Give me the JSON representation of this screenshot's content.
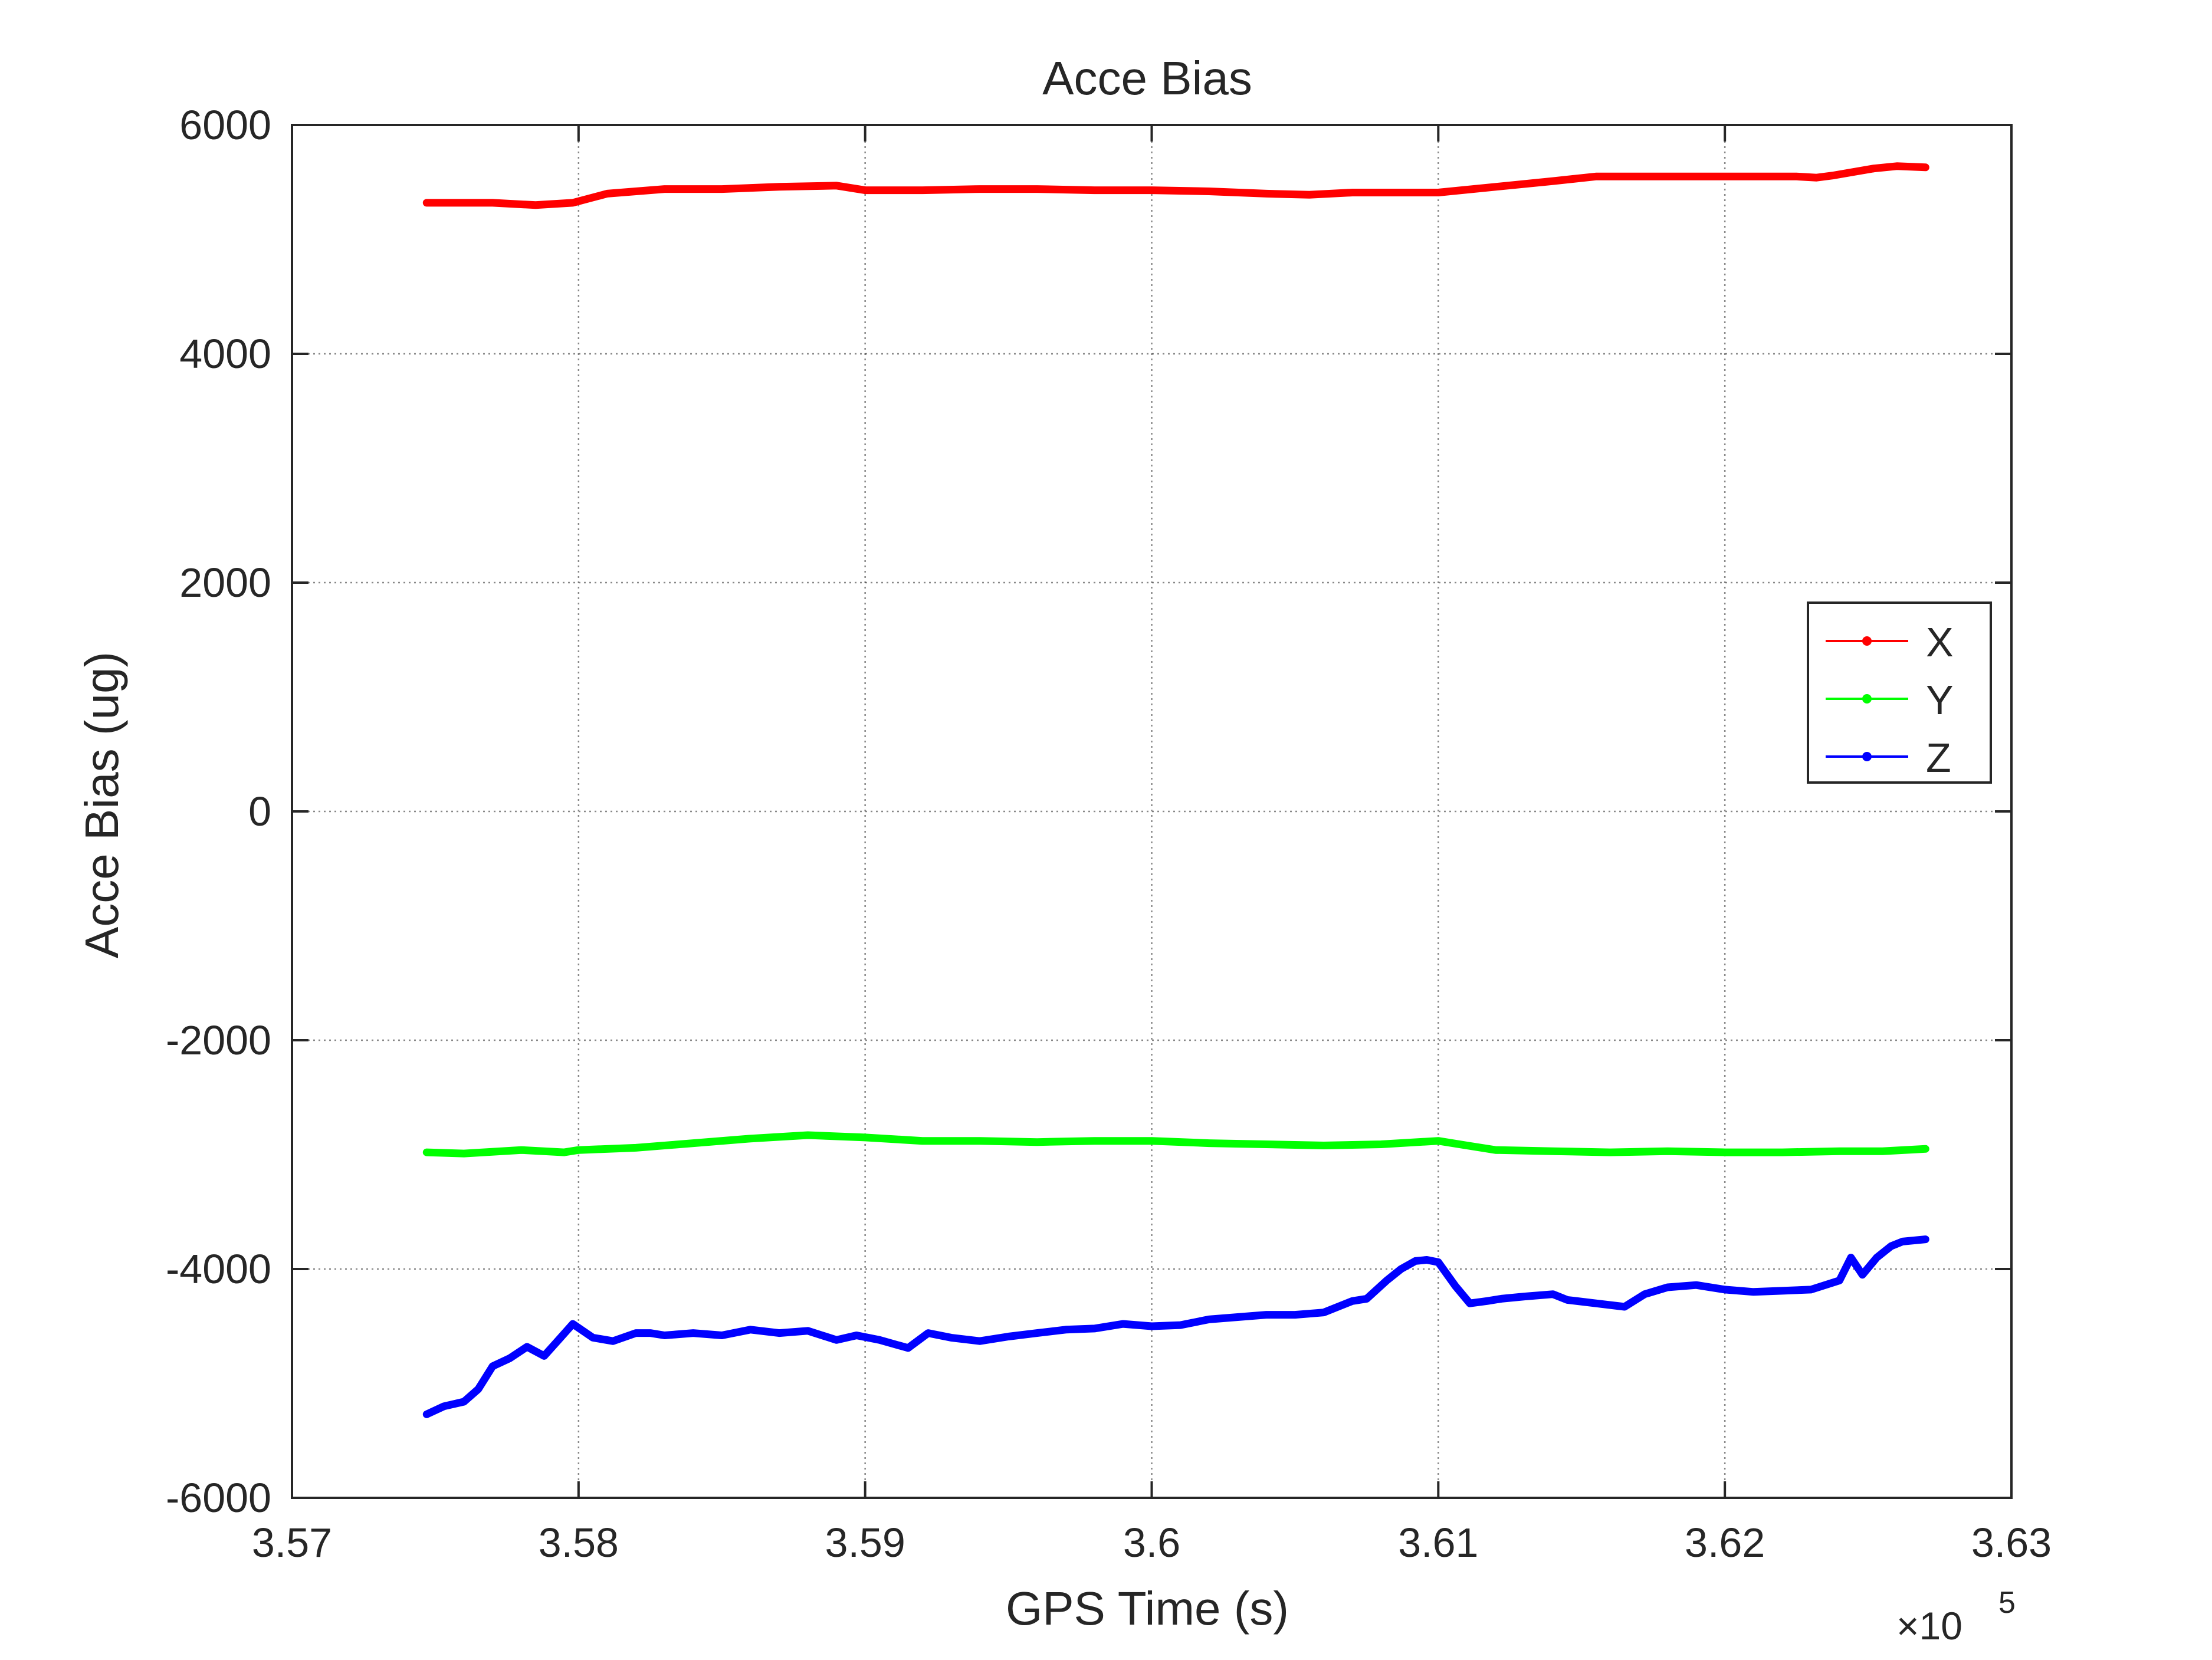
{
  "chart_data": {
    "type": "line",
    "title": "Acce Bias",
    "xlabel": "GPS Time (s)",
    "ylabel": "Acce Bias (ug)",
    "x_exponent_label": "×10",
    "x_exponent_power": "5",
    "xlim": [
      357000,
      363000
    ],
    "ylim": [
      -6000,
      6000
    ],
    "x_ticks": [
      357000,
      358000,
      359000,
      360000,
      361000,
      362000,
      363000
    ],
    "x_tick_labels": [
      "3.57",
      "3.58",
      "3.59",
      "3.6",
      "3.61",
      "3.62",
      "3.63"
    ],
    "y_ticks": [
      -6000,
      -4000,
      -2000,
      0,
      2000,
      4000,
      6000
    ],
    "y_tick_labels": [
      "-6000",
      "-4000",
      "-2000",
      "0",
      "2000",
      "4000",
      "6000"
    ],
    "grid": true,
    "legend_position": "right",
    "series": [
      {
        "name": "X",
        "color": "#ff0000",
        "x": [
          357470,
          357700,
          357850,
          357980,
          358100,
          358300,
          358500,
          358700,
          358900,
          359000,
          359200,
          359400,
          359600,
          359800,
          360000,
          360200,
          360400,
          360550,
          360700,
          360850,
          361000,
          361200,
          361400,
          361550,
          361700,
          361900,
          362100,
          362250,
          362320,
          362380,
          362450,
          362520,
          362600,
          362700
        ],
        "y": [
          5320,
          5320,
          5300,
          5320,
          5400,
          5440,
          5440,
          5460,
          5470,
          5430,
          5430,
          5440,
          5440,
          5430,
          5430,
          5420,
          5400,
          5390,
          5410,
          5410,
          5410,
          5460,
          5510,
          5550,
          5550,
          5550,
          5550,
          5550,
          5540,
          5560,
          5590,
          5620,
          5640,
          5630
        ]
      },
      {
        "name": "Y",
        "color": "#00ff00",
        "x": [
          357470,
          357600,
          357800,
          357950,
          358000,
          358200,
          358400,
          358600,
          358800,
          359000,
          359200,
          359400,
          359600,
          359800,
          360000,
          360200,
          360400,
          360600,
          360800,
          361000,
          361100,
          361200,
          361400,
          361600,
          361800,
          362000,
          362200,
          362400,
          362550,
          362700
        ],
        "y": [
          -2980,
          -2990,
          -2960,
          -2980,
          -2960,
          -2940,
          -2900,
          -2860,
          -2830,
          -2850,
          -2880,
          -2880,
          -2890,
          -2880,
          -2880,
          -2900,
          -2910,
          -2920,
          -2910,
          -2880,
          -2920,
          -2960,
          -2970,
          -2980,
          -2970,
          -2980,
          -2980,
          -2970,
          -2970,
          -2950
        ]
      },
      {
        "name": "Z",
        "color": "#0000ff",
        "x": [
          357470,
          357530,
          357600,
          357650,
          357700,
          357760,
          357820,
          357880,
          357930,
          357980,
          358050,
          358120,
          358200,
          358250,
          358300,
          358400,
          358500,
          358600,
          358700,
          358800,
          358900,
          358970,
          359050,
          359150,
          359220,
          359300,
          359400,
          359500,
          359600,
          359700,
          359800,
          359900,
          360000,
          360100,
          360200,
          360300,
          360400,
          360500,
          360600,
          360700,
          360750,
          360820,
          360870,
          360920,
          360960,
          361000,
          361060,
          361110,
          361170,
          361220,
          361300,
          361400,
          361450,
          361550,
          361650,
          361720,
          361800,
          361900,
          362000,
          362100,
          362200,
          362300,
          362400,
          362440,
          362480,
          362530,
          362580,
          362620,
          362700
        ],
        "y": [
          -5270,
          -5200,
          -5160,
          -5050,
          -4850,
          -4780,
          -4680,
          -4760,
          -4620,
          -4480,
          -4600,
          -4630,
          -4560,
          -4560,
          -4580,
          -4560,
          -4580,
          -4530,
          -4560,
          -4540,
          -4620,
          -4580,
          -4620,
          -4690,
          -4560,
          -4600,
          -4630,
          -4590,
          -4560,
          -4530,
          -4520,
          -4480,
          -4500,
          -4490,
          -4440,
          -4420,
          -4400,
          -4400,
          -4380,
          -4280,
          -4260,
          -4100,
          -4000,
          -3930,
          -3920,
          -3940,
          -4150,
          -4300,
          -4280,
          -4260,
          -4240,
          -4220,
          -4270,
          -4300,
          -4330,
          -4220,
          -4160,
          -4140,
          -4180,
          -4200,
          -4190,
          -4180,
          -4100,
          -3900,
          -4050,
          -3900,
          -3800,
          -3760,
          -3740
        ]
      }
    ]
  }
}
